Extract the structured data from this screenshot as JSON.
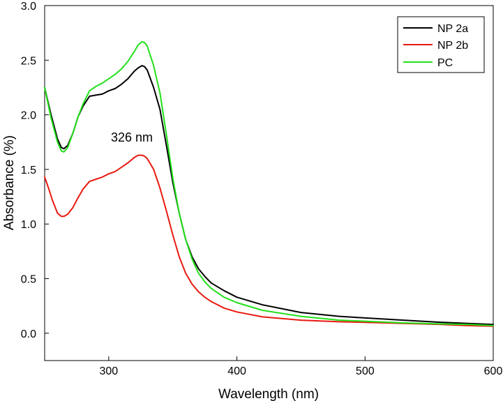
{
  "chart_data": {
    "type": "line",
    "title": "",
    "xlabel": "Wavelength (nm)",
    "ylabel": "Absorbance (%)",
    "xlim": [
      250,
      600
    ],
    "ylim": [
      -0.25,
      3.0
    ],
    "xticks": [
      300,
      400,
      500,
      600
    ],
    "yticks": [
      0.0,
      0.5,
      1.0,
      1.5,
      2.0,
      2.5,
      3.0
    ],
    "xtick_labels": [
      "300",
      "400",
      "500",
      "600"
    ],
    "ytick_labels": [
      "0.0",
      "0.5",
      "1.0",
      "1.5",
      "2.0",
      "2.5",
      "3.0"
    ],
    "grid": false,
    "legend_position": "top-right",
    "annotations": [
      {
        "text": "326 nm",
        "x": 272,
        "y": 1.89
      }
    ],
    "series": [
      {
        "name": "NP 2a",
        "color": "#000000",
        "x": [
          250,
          255,
          260,
          263,
          265,
          268,
          272,
          276,
          280,
          285,
          290,
          295,
          300,
          305,
          310,
          315,
          320,
          323,
          326,
          328,
          330,
          335,
          340,
          345,
          350,
          355,
          360,
          365,
          370,
          375,
          380,
          390,
          400,
          420,
          450,
          480,
          500,
          530,
          560,
          580,
          600
        ],
        "y": [
          2.25,
          2.0,
          1.78,
          1.7,
          1.69,
          1.72,
          1.83,
          1.98,
          2.08,
          2.17,
          2.18,
          2.19,
          2.22,
          2.24,
          2.28,
          2.33,
          2.4,
          2.43,
          2.45,
          2.44,
          2.41,
          2.25,
          2.05,
          1.72,
          1.38,
          1.1,
          0.86,
          0.7,
          0.59,
          0.52,
          0.46,
          0.39,
          0.33,
          0.26,
          0.19,
          0.155,
          0.14,
          0.12,
          0.1,
          0.09,
          0.08
        ]
      },
      {
        "name": "NP 2b",
        "color": "#e8190f",
        "x": [
          250,
          253,
          256,
          260,
          263,
          265,
          268,
          272,
          276,
          280,
          285,
          290,
          295,
          300,
          305,
          310,
          315,
          320,
          323,
          326,
          328,
          330,
          335,
          340,
          345,
          350,
          355,
          360,
          365,
          370,
          375,
          380,
          390,
          400,
          420,
          450,
          480,
          500,
          530,
          560,
          580,
          600
        ],
        "y": [
          1.43,
          1.33,
          1.22,
          1.1,
          1.07,
          1.07,
          1.09,
          1.15,
          1.24,
          1.32,
          1.39,
          1.41,
          1.43,
          1.46,
          1.48,
          1.52,
          1.56,
          1.61,
          1.63,
          1.63,
          1.62,
          1.6,
          1.5,
          1.33,
          1.12,
          0.9,
          0.7,
          0.55,
          0.45,
          0.38,
          0.33,
          0.29,
          0.23,
          0.195,
          0.15,
          0.12,
          0.105,
          0.1,
          0.09,
          0.08,
          0.07,
          0.065
        ]
      },
      {
        "name": "PC",
        "color": "#22e01a",
        "x": [
          250,
          255,
          260,
          263,
          265,
          268,
          272,
          276,
          280,
          285,
          290,
          295,
          300,
          305,
          310,
          315,
          320,
          323,
          326,
          328,
          330,
          335,
          340,
          345,
          350,
          355,
          360,
          365,
          370,
          375,
          380,
          390,
          400,
          420,
          450,
          480,
          500,
          530,
          560,
          580,
          600
        ],
        "y": [
          2.25,
          1.97,
          1.75,
          1.67,
          1.66,
          1.7,
          1.83,
          1.98,
          2.1,
          2.22,
          2.26,
          2.29,
          2.33,
          2.37,
          2.42,
          2.49,
          2.58,
          2.64,
          2.67,
          2.66,
          2.63,
          2.45,
          2.2,
          1.82,
          1.42,
          1.1,
          0.86,
          0.68,
          0.55,
          0.47,
          0.41,
          0.33,
          0.28,
          0.21,
          0.155,
          0.12,
          0.11,
          0.095,
          0.085,
          0.08,
          0.07
        ]
      }
    ]
  }
}
